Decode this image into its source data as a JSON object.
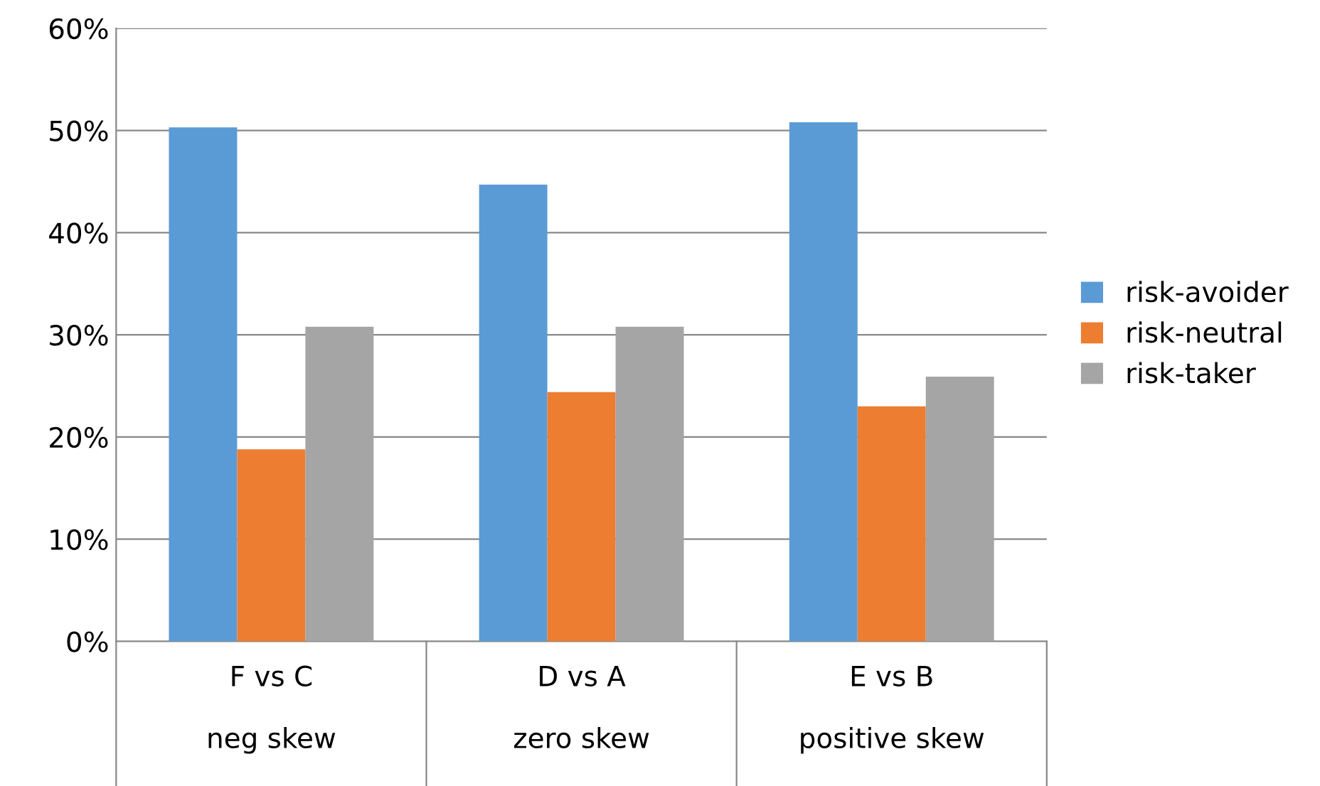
{
  "chart_data": {
    "type": "bar",
    "categories": [
      "F vs C\n\nneg skew",
      "D vs A\n\nzero skew",
      "E vs B\n\npositive skew"
    ],
    "series": [
      {
        "name": "risk-avoider",
        "color": "#5b9bd5",
        "values": [
          50.3,
          44.7,
          50.8
        ]
      },
      {
        "name": "risk-neutral",
        "color": "#ed7d31",
        "values": [
          18.8,
          24.4,
          23.0
        ]
      },
      {
        "name": "risk-taker",
        "color": "#a5a5a5",
        "values": [
          30.8,
          30.8,
          25.9
        ]
      }
    ],
    "ylim": [
      0,
      60
    ],
    "yticks": [
      {
        "value": 0,
        "label": "0%"
      },
      {
        "value": 10,
        "label": "10%"
      },
      {
        "value": 20,
        "label": "20%"
      },
      {
        "value": 30,
        "label": "30%"
      },
      {
        "value": 40,
        "label": "40%"
      },
      {
        "value": 50,
        "label": "50%"
      },
      {
        "value": 60,
        "label": "60%"
      }
    ],
    "grid": "y",
    "legend": "right"
  }
}
